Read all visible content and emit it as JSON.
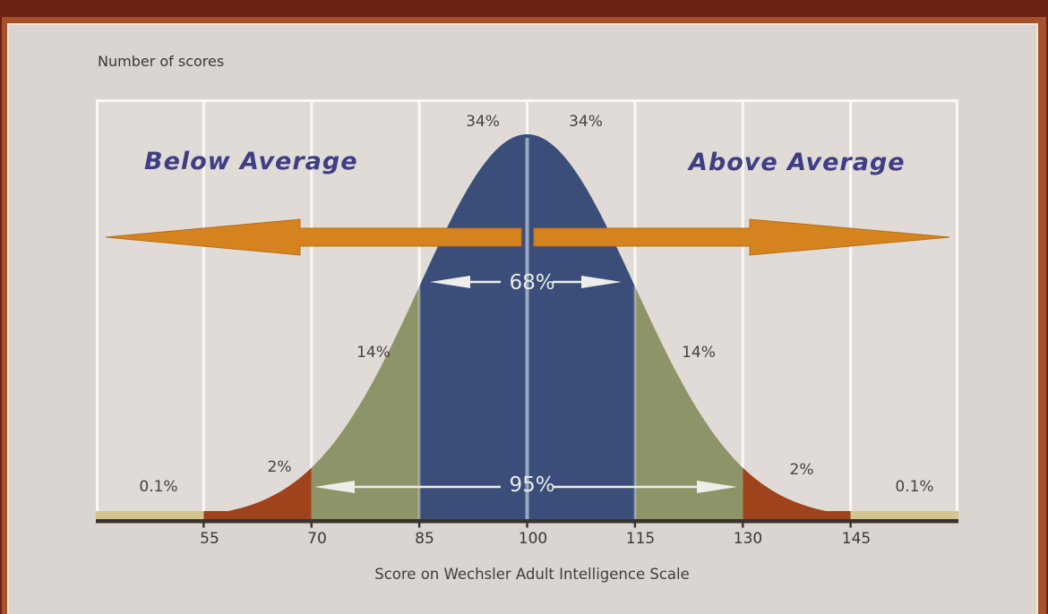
{
  "chart_data": {
    "type": "area",
    "subtype": "normal-distribution-bell-curve",
    "y_axis_label": "Number of scores",
    "x_axis_label": "Score on Wechsler Adult Intelligence Scale",
    "x_ticks": [
      "55",
      "70",
      "85",
      "100",
      "115",
      "130",
      "145"
    ],
    "x_range": [
      40,
      160
    ],
    "mean": 100,
    "standard_deviation": 15,
    "grid": "vertical white gridlines every 15 score units; legend none",
    "pct_labels": [
      {
        "text": "0.1%",
        "band": "below 55"
      },
      {
        "text": "2%",
        "band": "55-70"
      },
      {
        "text": "14%",
        "band": "70-85"
      },
      {
        "text": "34%",
        "band": "85-100"
      },
      {
        "text": "34%",
        "band": "100-115"
      },
      {
        "text": "14%",
        "band": "115-130"
      },
      {
        "text": "2%",
        "band": "130-145"
      },
      {
        "text": "0.1%",
        "band": "above 145"
      }
    ],
    "interval_arrows": [
      {
        "label": "68%",
        "from": 85,
        "to": 115
      },
      {
        "label": "95%",
        "from": 70,
        "to": 130
      }
    ],
    "direction_labels": {
      "below": "Below Average",
      "above": "Above Average"
    },
    "bands": [
      {
        "from": 40,
        "to": 55,
        "percent": "0.1%",
        "color": "#d2c68e"
      },
      {
        "from": 55,
        "to": 70,
        "percent": "2%",
        "color": "#9e431b"
      },
      {
        "from": 70,
        "to": 85,
        "percent": "14%",
        "color": "#8d9468"
      },
      {
        "from": 85,
        "to": 115,
        "percent": "68%",
        "color": "#3a4e79"
      },
      {
        "from": 115,
        "to": 130,
        "percent": "14%",
        "color": "#8d9468"
      },
      {
        "from": 130,
        "to": 145,
        "percent": "2%",
        "color": "#9e431b"
      },
      {
        "from": 145,
        "to": 160,
        "percent": "0.1%",
        "color": "#d2c68e"
      }
    ],
    "colors": {
      "arrow_orange": "#d5831f",
      "arrow_orange_edge": "#b96d12",
      "center_line": "#96a8c2",
      "baseline": "#38342d",
      "grid": "#faf8f5",
      "plot_bg": "#e0dbd7",
      "outer_bg": "#dad5d0",
      "frame_maroon": "#6b2012",
      "frame_sienna": "#a5522b",
      "frame_cream": "#f5e6d9",
      "interval_line": "#edeeea"
    }
  }
}
